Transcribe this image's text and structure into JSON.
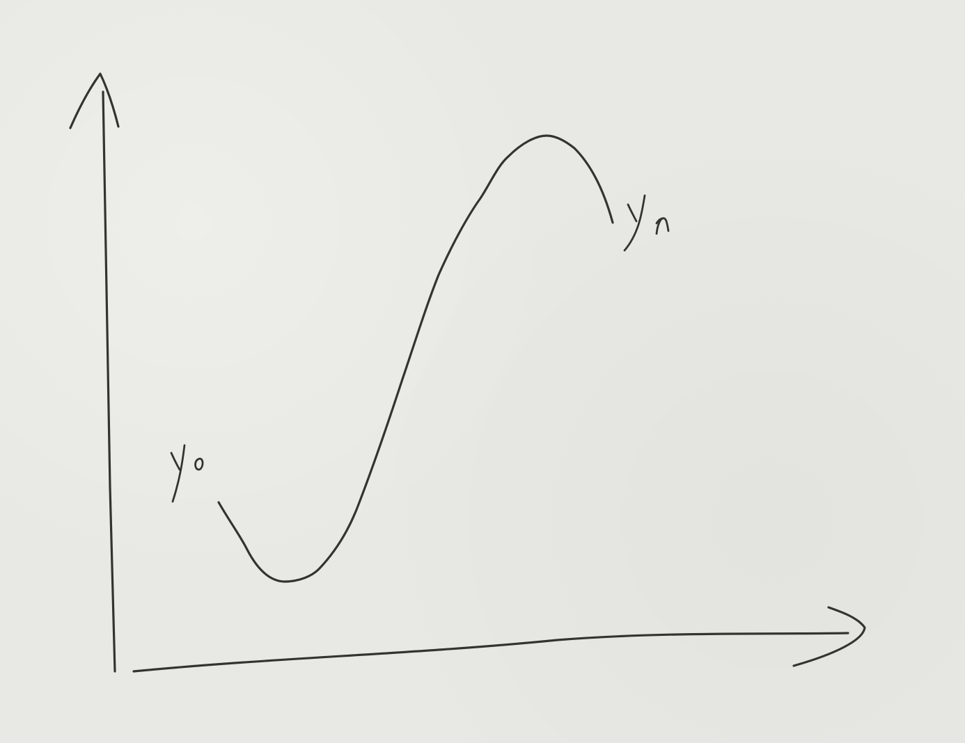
{
  "diagram": {
    "start_label": "y₀",
    "end_label": "yₙ"
  },
  "colors": {
    "paper": "#e8e8e4",
    "ink": "#333330"
  }
}
